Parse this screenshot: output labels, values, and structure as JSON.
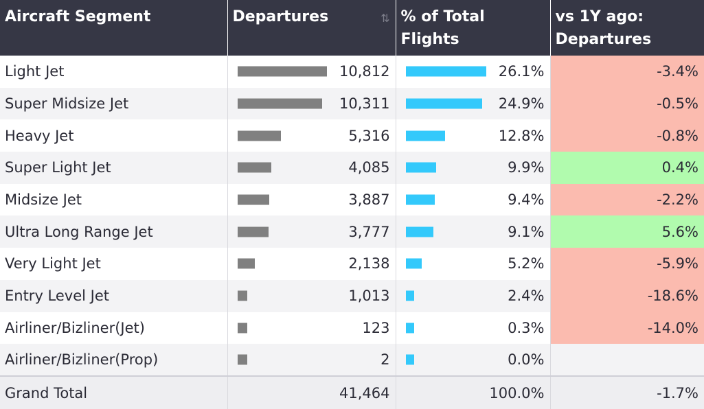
{
  "headers": {
    "segment": "Aircraft Segment",
    "departures": "Departures",
    "pct_total": "% of Total Flights",
    "vs_1y": "vs 1Y ago: Departures"
  },
  "rows": [
    {
      "segment": "Light Jet",
      "departures": "10,812",
      "pct": "26.1%",
      "change": "-3.4%"
    },
    {
      "segment": "Super Midsize Jet",
      "departures": "10,311",
      "pct": "24.9%",
      "change": "-0.5%"
    },
    {
      "segment": "Heavy Jet",
      "departures": "5,316",
      "pct": "12.8%",
      "change": "-0.8%"
    },
    {
      "segment": "Super Light Jet",
      "departures": "4,085",
      "pct": "9.9%",
      "change": "0.4%"
    },
    {
      "segment": "Midsize Jet",
      "departures": "3,887",
      "pct": "9.4%",
      "change": "-2.2%"
    },
    {
      "segment": "Ultra Long Range Jet",
      "departures": "3,777",
      "pct": "9.1%",
      "change": "5.6%"
    },
    {
      "segment": "Very Light Jet",
      "departures": "2,138",
      "pct": "5.2%",
      "change": "-5.9%"
    },
    {
      "segment": "Entry Level Jet",
      "departures": "1,013",
      "pct": "2.4%",
      "change": "-18.6%"
    },
    {
      "segment": "Airliner/Bizliner(Jet)",
      "departures": "123",
      "pct": "0.3%",
      "change": "-14.0%"
    },
    {
      "segment": "Airliner/Bizliner(Prop)",
      "departures": "2",
      "pct": "0.0%",
      "change": ""
    }
  ],
  "total": {
    "label": "Grand Total",
    "departures": "41,464",
    "pct": "100.0%",
    "change": "-1.7%"
  },
  "colors": {
    "header_bg": "#363745",
    "departure_bar": "#808080",
    "pct_bar": "#33c9fb",
    "negative": "#fbbbaf",
    "positive": "#b1fbae"
  },
  "chart_data": {
    "type": "table",
    "columns": [
      "Aircraft Segment",
      "Departures",
      "% of Total Flights",
      "vs 1Y ago: Departures"
    ],
    "categories": [
      "Light Jet",
      "Super Midsize Jet",
      "Heavy Jet",
      "Super Light Jet",
      "Midsize Jet",
      "Ultra Long Range Jet",
      "Very Light Jet",
      "Entry Level Jet",
      "Airliner/Bizliner(Jet)",
      "Airliner/Bizliner(Prop)"
    ],
    "series": [
      {
        "name": "Departures",
        "values": [
          10812,
          10311,
          5316,
          4085,
          3887,
          3777,
          2138,
          1013,
          123,
          2
        ]
      },
      {
        "name": "% of Total Flights",
        "values": [
          26.1,
          24.9,
          12.8,
          9.9,
          9.4,
          9.1,
          5.2,
          2.4,
          0.3,
          0.0
        ]
      },
      {
        "name": "vs 1Y ago: Departures",
        "values": [
          -3.4,
          -0.5,
          -0.8,
          0.4,
          -2.2,
          5.6,
          -5.9,
          -18.6,
          -14.0,
          null
        ]
      }
    ],
    "totals": {
      "Departures": 41464,
      "% of Total Flights": 100.0,
      "vs 1Y ago: Departures": -1.7
    }
  }
}
